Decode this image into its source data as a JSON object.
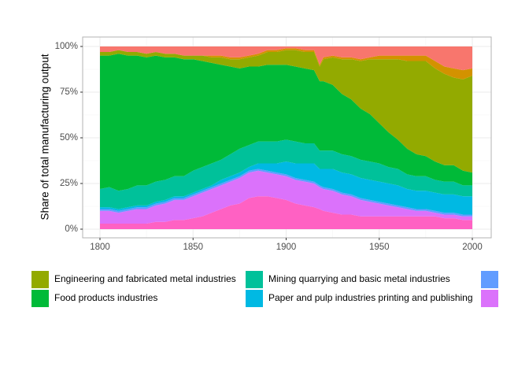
{
  "chart_data": {
    "type": "area",
    "stacked": true,
    "normalized": true,
    "title": "",
    "xlabel": "",
    "ylabel": "Share of total manufacturing output",
    "xlim": [
      1800,
      2000
    ],
    "ylim": [
      0,
      1
    ],
    "x_ticks": [
      1800,
      1850,
      1900,
      1950,
      2000
    ],
    "x_tick_labels": [
      "1800",
      "1850",
      "1900",
      "1950",
      "2000"
    ],
    "y_ticks": [
      0,
      0.25,
      0.5,
      0.75,
      1.0
    ],
    "y_tick_labels": [
      "0%",
      "25%",
      "50%",
      "75%",
      "100%"
    ],
    "grid": true,
    "legend_position": "bottom",
    "x": [
      1800,
      1805,
      1810,
      1815,
      1820,
      1825,
      1830,
      1835,
      1840,
      1845,
      1850,
      1855,
      1860,
      1865,
      1870,
      1875,
      1880,
      1885,
      1890,
      1895,
      1900,
      1905,
      1910,
      1915,
      1918,
      1920,
      1925,
      1930,
      1935,
      1940,
      1945,
      1950,
      1955,
      1960,
      1965,
      1970,
      1975,
      1980,
      1985,
      1990,
      1995,
      2000
    ],
    "series": [
      {
        "name": "",
        "color": "#FF61C3",
        "values": [
          0.03,
          0.03,
          0.03,
          0.03,
          0.03,
          0.03,
          0.04,
          0.04,
          0.05,
          0.05,
          0.06,
          0.07,
          0.09,
          0.11,
          0.13,
          0.14,
          0.17,
          0.18,
          0.18,
          0.17,
          0.16,
          0.14,
          0.13,
          0.12,
          0.11,
          0.1,
          0.09,
          0.08,
          0.08,
          0.07,
          0.07,
          0.07,
          0.07,
          0.07,
          0.07,
          0.07,
          0.07,
          0.07,
          0.06,
          0.06,
          0.05,
          0.05
        ]
      },
      {
        "name": "",
        "color": "#DB72FB",
        "values": [
          0.07,
          0.07,
          0.06,
          0.07,
          0.08,
          0.08,
          0.09,
          0.1,
          0.11,
          0.11,
          0.12,
          0.13,
          0.13,
          0.13,
          0.13,
          0.14,
          0.14,
          0.14,
          0.13,
          0.13,
          0.13,
          0.13,
          0.13,
          0.13,
          0.12,
          0.12,
          0.12,
          0.11,
          0.1,
          0.09,
          0.08,
          0.07,
          0.06,
          0.05,
          0.04,
          0.03,
          0.03,
          0.02,
          0.02,
          0.02,
          0.02,
          0.02
        ]
      },
      {
        "name": "",
        "color": "#619CFF",
        "values": [
          0.01,
          0.01,
          0.01,
          0.01,
          0.01,
          0.01,
          0.01,
          0.01,
          0.01,
          0.01,
          0.01,
          0.01,
          0.01,
          0.01,
          0.01,
          0.01,
          0.01,
          0.01,
          0.01,
          0.01,
          0.01,
          0.01,
          0.01,
          0.01,
          0.01,
          0.01,
          0.01,
          0.01,
          0.01,
          0.01,
          0.01,
          0.01,
          0.01,
          0.01,
          0.01,
          0.01,
          0.01,
          0.01,
          0.01,
          0.01,
          0.01,
          0.01
        ]
      },
      {
        "name": "Paper and pulp industries printing and publishing",
        "color": "#00B9E3",
        "values": [
          0.01,
          0.01,
          0.01,
          0.01,
          0.01,
          0.01,
          0.01,
          0.01,
          0.01,
          0.01,
          0.01,
          0.01,
          0.01,
          0.02,
          0.02,
          0.02,
          0.02,
          0.03,
          0.04,
          0.05,
          0.07,
          0.08,
          0.09,
          0.1,
          0.09,
          0.1,
          0.11,
          0.11,
          0.11,
          0.11,
          0.11,
          0.11,
          0.11,
          0.11,
          0.1,
          0.1,
          0.1,
          0.1,
          0.1,
          0.1,
          0.1,
          0.1
        ]
      },
      {
        "name": "Mining quarrying and basic metal industries",
        "color": "#00C19A",
        "values": [
          0.1,
          0.11,
          0.1,
          0.1,
          0.11,
          0.11,
          0.11,
          0.11,
          0.11,
          0.11,
          0.12,
          0.12,
          0.12,
          0.11,
          0.12,
          0.13,
          0.12,
          0.12,
          0.12,
          0.12,
          0.12,
          0.12,
          0.11,
          0.11,
          0.1,
          0.1,
          0.1,
          0.1,
          0.1,
          0.1,
          0.1,
          0.1,
          0.09,
          0.09,
          0.08,
          0.08,
          0.08,
          0.07,
          0.07,
          0.07,
          0.06,
          0.06
        ]
      },
      {
        "name": "Food products industries",
        "color": "#00BA38",
        "values": [
          0.73,
          0.72,
          0.75,
          0.73,
          0.71,
          0.7,
          0.69,
          0.67,
          0.65,
          0.64,
          0.61,
          0.58,
          0.55,
          0.52,
          0.48,
          0.44,
          0.43,
          0.41,
          0.42,
          0.42,
          0.41,
          0.41,
          0.41,
          0.4,
          0.38,
          0.38,
          0.36,
          0.33,
          0.31,
          0.28,
          0.26,
          0.22,
          0.19,
          0.16,
          0.14,
          0.12,
          0.11,
          0.1,
          0.09,
          0.09,
          0.08,
          0.07
        ]
      },
      {
        "name": "Engineering and fabricated metal industries",
        "color": "#93AA00",
        "values": [
          0.02,
          0.02,
          0.02,
          0.02,
          0.02,
          0.02,
          0.02,
          0.02,
          0.02,
          0.02,
          0.02,
          0.03,
          0.03,
          0.04,
          0.04,
          0.05,
          0.05,
          0.06,
          0.07,
          0.07,
          0.08,
          0.09,
          0.09,
          0.1,
          0.08,
          0.12,
          0.15,
          0.19,
          0.22,
          0.26,
          0.3,
          0.35,
          0.4,
          0.44,
          0.48,
          0.51,
          0.52,
          0.51,
          0.5,
          0.48,
          0.5,
          0.53
        ]
      },
      {
        "name": "",
        "color": "#D39200",
        "values": [
          0.0,
          0.0,
          0.0,
          0.0,
          0.0,
          0.0,
          0.0,
          0.0,
          0.0,
          0.0,
          0.0,
          0.0,
          0.01,
          0.01,
          0.01,
          0.01,
          0.01,
          0.01,
          0.01,
          0.01,
          0.01,
          0.01,
          0.01,
          0.01,
          0.01,
          0.01,
          0.01,
          0.01,
          0.01,
          0.01,
          0.01,
          0.02,
          0.02,
          0.02,
          0.03,
          0.03,
          0.03,
          0.04,
          0.04,
          0.05,
          0.05,
          0.04
        ]
      },
      {
        "name": "",
        "color": "#F8766D",
        "values": [
          0.03,
          0.03,
          0.02,
          0.03,
          0.03,
          0.04,
          0.03,
          0.04,
          0.04,
          0.05,
          0.05,
          0.05,
          0.05,
          0.05,
          0.06,
          0.06,
          0.05,
          0.04,
          0.02,
          0.02,
          0.01,
          0.01,
          0.02,
          0.02,
          0.1,
          0.06,
          0.05,
          0.06,
          0.06,
          0.07,
          0.06,
          0.05,
          0.05,
          0.05,
          0.05,
          0.05,
          0.05,
          0.08,
          0.11,
          0.12,
          0.13,
          0.12
        ]
      }
    ],
    "legend": [
      {
        "label": "Engineering and fabricated metal industries",
        "color": "#93AA00"
      },
      {
        "label": "Food products industries",
        "color": "#00BA38"
      },
      {
        "label": "Mining quarrying and basic metal industries",
        "color": "#00C19A"
      },
      {
        "label": "Paper and pulp industries printing and publishing",
        "color": "#00B9E3"
      },
      {
        "label": "",
        "color": "#619CFF"
      },
      {
        "label": "",
        "color": "#DB72FB"
      }
    ]
  }
}
